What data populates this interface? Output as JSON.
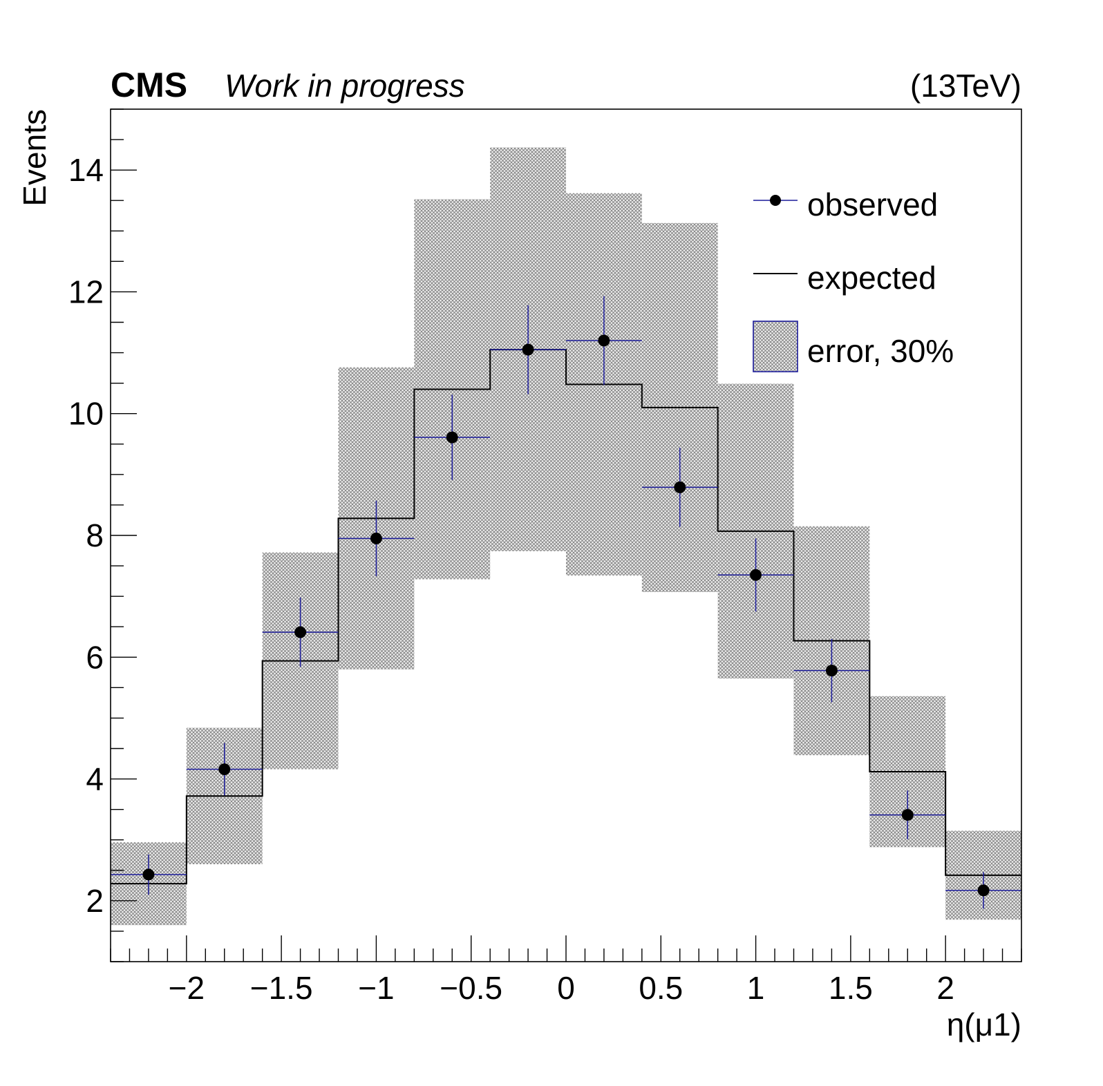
{
  "chart_data": {
    "type": "bar",
    "title_bold": "CMS",
    "title_italic": "Work in progress",
    "energy_label": "(13TeV)",
    "xlabel": "η(μ1)",
    "ylabel": "Events",
    "xlim": [
      -2.4,
      2.4
    ],
    "ylim": [
      1,
      15
    ],
    "grid": false,
    "legend_position": "top-right",
    "x_ticks": [
      -2,
      -1.5,
      -1,
      -0.5,
      0,
      0.5,
      1,
      1.5,
      2
    ],
    "x_tick_labels": [
      "−2",
      "−1.5",
      "−1",
      "−0.5",
      "0",
      "0.5",
      "1",
      "1.5",
      "2"
    ],
    "y_ticks": [
      2,
      4,
      6,
      8,
      10,
      12,
      14
    ],
    "y_tick_labels": [
      "2",
      "4",
      "6",
      "8",
      "10",
      "12",
      "14"
    ],
    "bin_edges": [
      -2.4,
      -2.0,
      -1.6,
      -1.2,
      -0.8,
      -0.4,
      0.0,
      0.4,
      0.8,
      1.2,
      1.6,
      2.0,
      2.4
    ],
    "series": [
      {
        "name": "observed",
        "kind": "points",
        "x": [
          -2.2,
          -1.8,
          -1.4,
          -1.0,
          -0.6,
          -0.2,
          0.2,
          0.6,
          1.0,
          1.4,
          1.8,
          2.2
        ],
        "values": [
          2.43,
          4.16,
          6.41,
          7.95,
          9.61,
          11.05,
          11.2,
          8.79,
          7.35,
          5.78,
          3.41,
          2.17
        ],
        "yerr": [
          0.33,
          0.43,
          0.57,
          0.62,
          0.7,
          0.73,
          0.73,
          0.65,
          0.6,
          0.52,
          0.4,
          0.3
        ],
        "marker_color": "#000000",
        "error_color": "#1a1a9a"
      },
      {
        "name": "expected",
        "kind": "step",
        "values": [
          2.28,
          3.72,
          5.94,
          8.28,
          10.4,
          11.05,
          10.48,
          10.1,
          8.07,
          6.27,
          4.12,
          2.42
        ],
        "color": "#000000"
      },
      {
        "name": "error, 30%",
        "kind": "band",
        "low": [
          1.6,
          2.6,
          4.16,
          5.8,
          7.28,
          7.74,
          7.34,
          7.07,
          5.65,
          4.39,
          2.88,
          1.69
        ],
        "high": [
          2.96,
          4.84,
          7.72,
          10.76,
          13.52,
          14.37,
          13.62,
          13.13,
          10.49,
          8.15,
          5.36,
          3.15
        ],
        "color": "#888888",
        "border_color": "#1a1a9a"
      }
    ]
  }
}
